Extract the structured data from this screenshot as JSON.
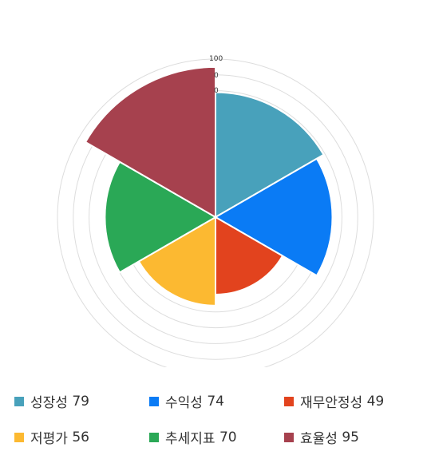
{
  "chart_data": {
    "type": "polar-area",
    "categories": [
      "성장성",
      "수익성",
      "재무안정성",
      "저평가",
      "추세지표",
      "효율성"
    ],
    "values": [
      79,
      74,
      49,
      56,
      70,
      95
    ],
    "colors": [
      "#48a1bb",
      "#0a7bf5",
      "#e2431e",
      "#fcb931",
      "#2aa856",
      "#a6414e"
    ],
    "r_range": [
      0,
      100
    ],
    "tick_labels": [
      "100",
      "0",
      "0"
    ],
    "legend_position": "bottom",
    "grid": true
  },
  "legend": [
    {
      "name": "성장성",
      "value": "79"
    },
    {
      "name": "수익성",
      "value": "74"
    },
    {
      "name": "재무안정성",
      "value": "49"
    },
    {
      "name": "저평가",
      "value": "56"
    },
    {
      "name": "추세지표",
      "value": "70"
    },
    {
      "name": "효율성",
      "value": "95"
    }
  ]
}
